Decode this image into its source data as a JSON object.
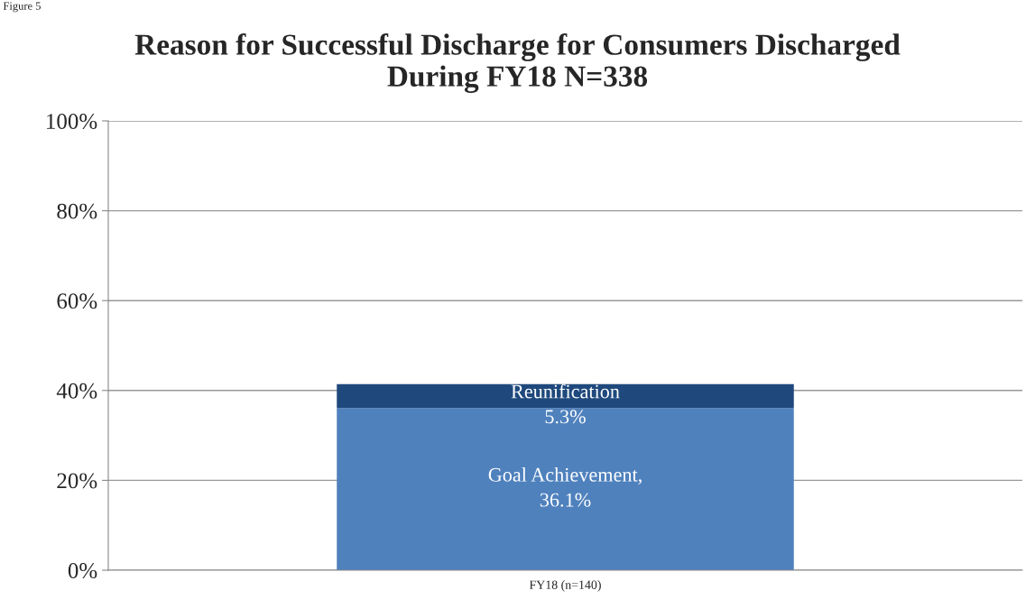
{
  "chart_data": {
    "type": "bar",
    "title": "Reason for Successful Discharge for Consumers Discharged\nDuring FY18 N=338",
    "categories": [
      "FY18 (n=140)"
    ],
    "stacked": true,
    "series": [
      {
        "name": null,
        "color": "#4f81bd",
        "values": [
          36.1
        ],
        "value_labels": [
          "Goal Achievement,\n36.1%"
        ]
      },
      {
        "name": null,
        "color": "#1f497d",
        "values": [
          5.3
        ],
        "value_labels": [
          "Reunification\n5.3%"
        ]
      }
    ],
    "ylim": [
      0,
      100
    ],
    "yticks": [
      {
        "value": 0,
        "label": "0%"
      },
      {
        "value": 20,
        "label": "20%"
      },
      {
        "value": 40,
        "label": "40%"
      },
      {
        "value": 60,
        "label": "60%"
      },
      {
        "value": 80,
        "label": "80%"
      },
      {
        "value": 100,
        "label": "100%"
      }
    ],
    "grid": "y",
    "annotations": [
      "Figure 5"
    ]
  }
}
